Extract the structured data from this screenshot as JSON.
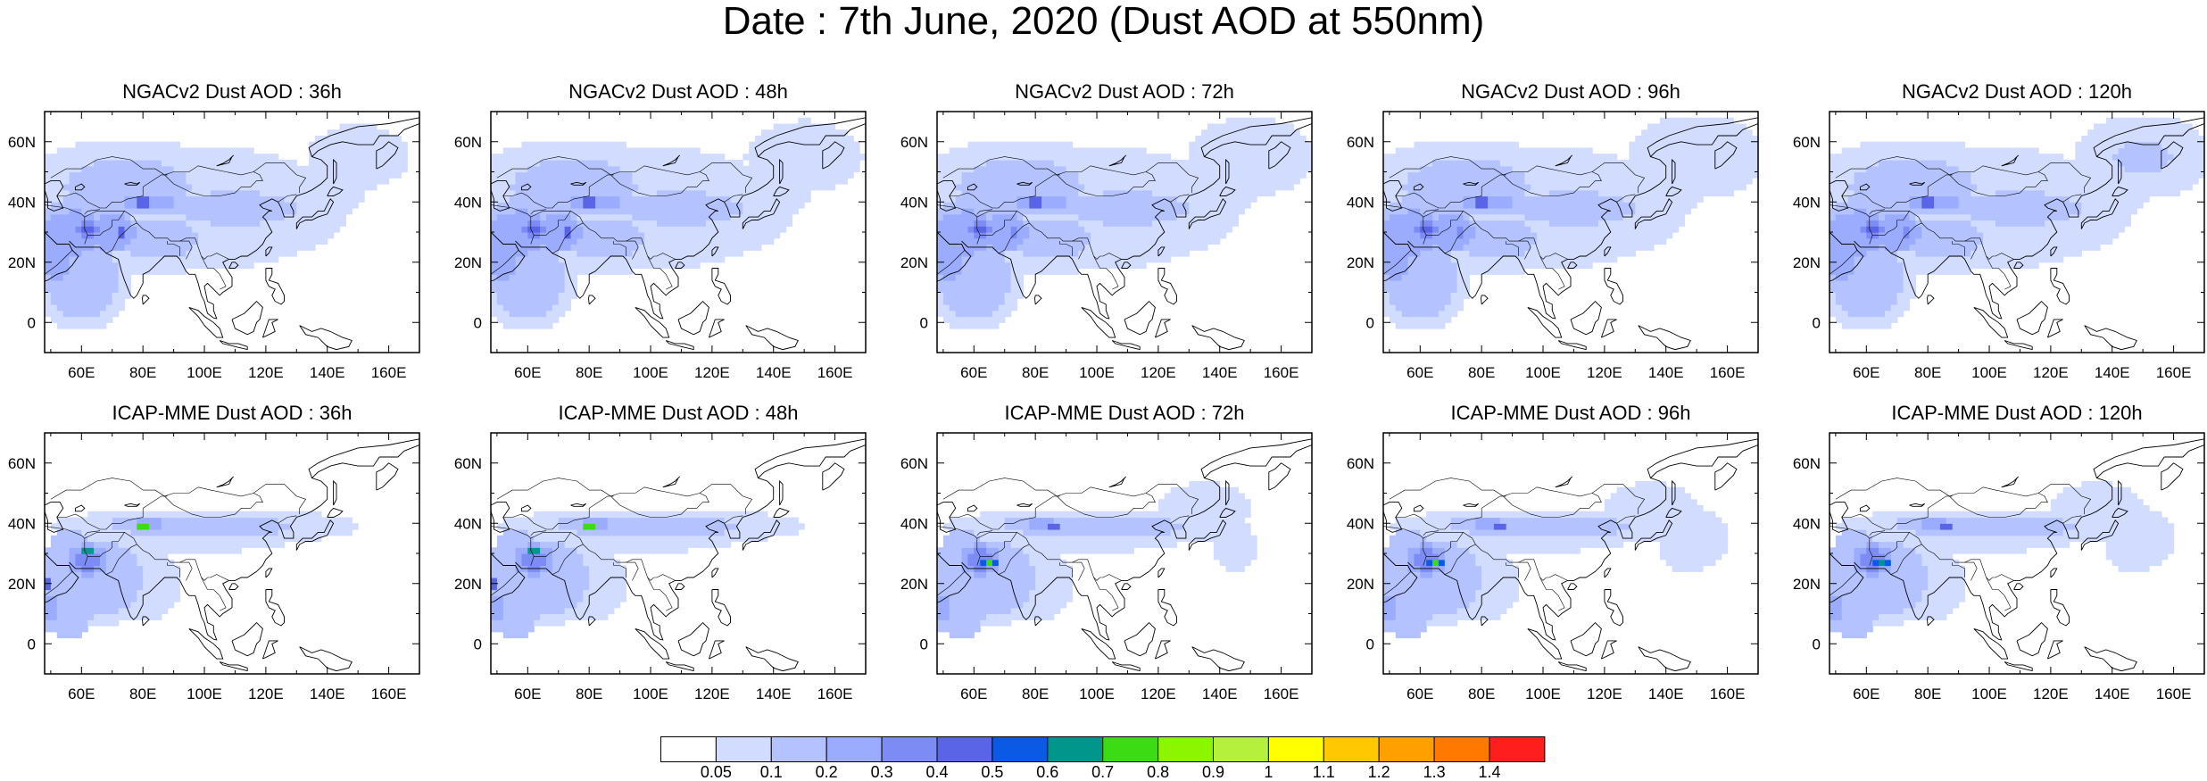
{
  "title": "Date : 7th June, 2020 (Dust AOD at 550nm)",
  "x_ticks": [
    "60E",
    "80E",
    "100E",
    "120E",
    "140E",
    "160E"
  ],
  "y_ticks": [
    "60N",
    "40N",
    "20N",
    "0"
  ],
  "panels": [
    {
      "title": "NGACv2 Dust AOD : 36h",
      "model": "NGACv2",
      "lead": "36h"
    },
    {
      "title": "NGACv2 Dust AOD : 48h",
      "model": "NGACv2",
      "lead": "48h"
    },
    {
      "title": "NGACv2 Dust AOD : 72h",
      "model": "NGACv2",
      "lead": "72h"
    },
    {
      "title": "NGACv2 Dust AOD : 96h",
      "model": "NGACv2",
      "lead": "96h"
    },
    {
      "title": "NGACv2 Dust AOD : 120h",
      "model": "NGACv2",
      "lead": "120h"
    },
    {
      "title": "ICAP-MME Dust AOD : 36h",
      "model": "ICAP-MME",
      "lead": "36h"
    },
    {
      "title": "ICAP-MME Dust AOD : 48h",
      "model": "ICAP-MME",
      "lead": "48h"
    },
    {
      "title": "ICAP-MME Dust AOD : 72h",
      "model": "ICAP-MME",
      "lead": "72h"
    },
    {
      "title": "ICAP-MME Dust AOD : 96h",
      "model": "ICAP-MME",
      "lead": "96h"
    },
    {
      "title": "ICAP-MME Dust AOD : 120h",
      "model": "ICAP-MME",
      "lead": "120h"
    }
  ],
  "colorbar": {
    "labels": [
      "0.05",
      "0.1",
      "0.2",
      "0.3",
      "0.4",
      "0.5",
      "0.6",
      "0.7",
      "0.8",
      "0.9",
      "1",
      "1.1",
      "1.2",
      "1.3",
      "1.4"
    ],
    "colors": [
      "#ffffff",
      "#d2dcff",
      "#b4c3ff",
      "#9bacff",
      "#7d8cf5",
      "#5a64e6",
      "#0a5ae6",
      "#00968c",
      "#3cdc14",
      "#8cf500",
      "#b4f03c",
      "#ffff00",
      "#ffc800",
      "#ffa000",
      "#ff7800",
      "#ff1e1e"
    ]
  }
}
